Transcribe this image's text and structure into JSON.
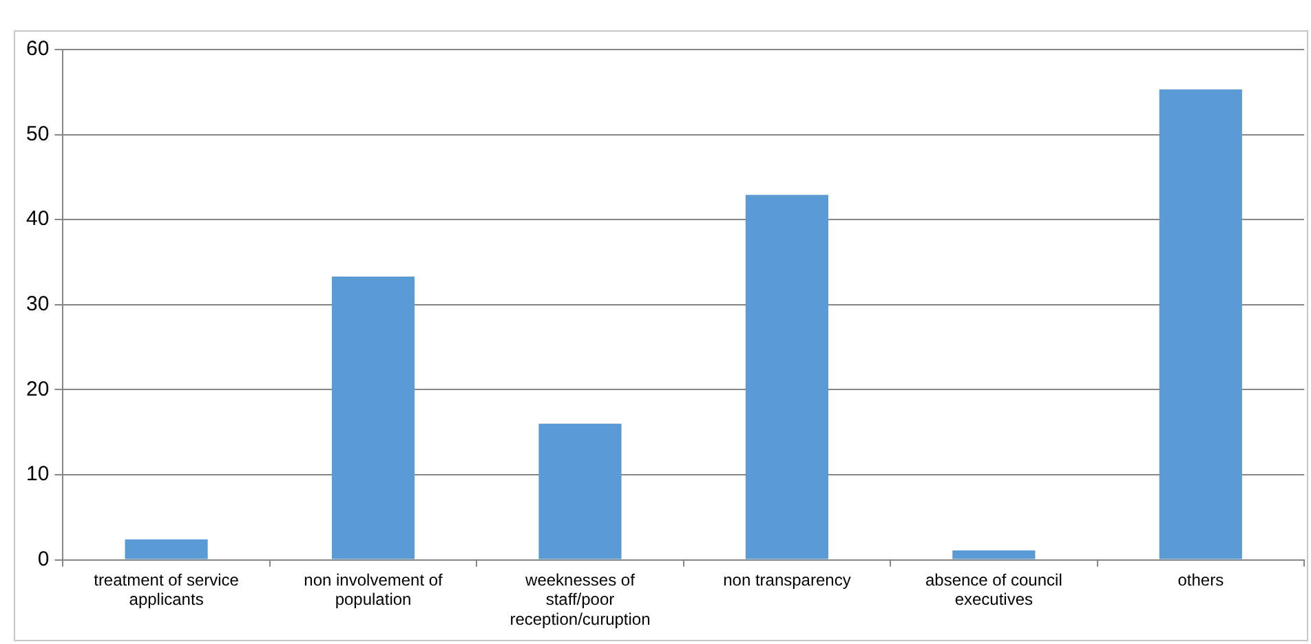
{
  "chart_data": {
    "type": "bar",
    "categories": [
      "treatment of service applicants",
      "non involvement of population",
      "weeknesses of staff/poor reception/curuption",
      "non transparency",
      "absence of council executives",
      "others"
    ],
    "values": [
      2.4,
      33.3,
      16.0,
      42.9,
      1.1,
      55.3
    ],
    "color": "#5b9bd5",
    "ylim": [
      0,
      60
    ],
    "yticks": [
      0,
      10,
      20,
      30,
      40,
      50,
      60
    ],
    "grid": "y",
    "legend": false
  }
}
